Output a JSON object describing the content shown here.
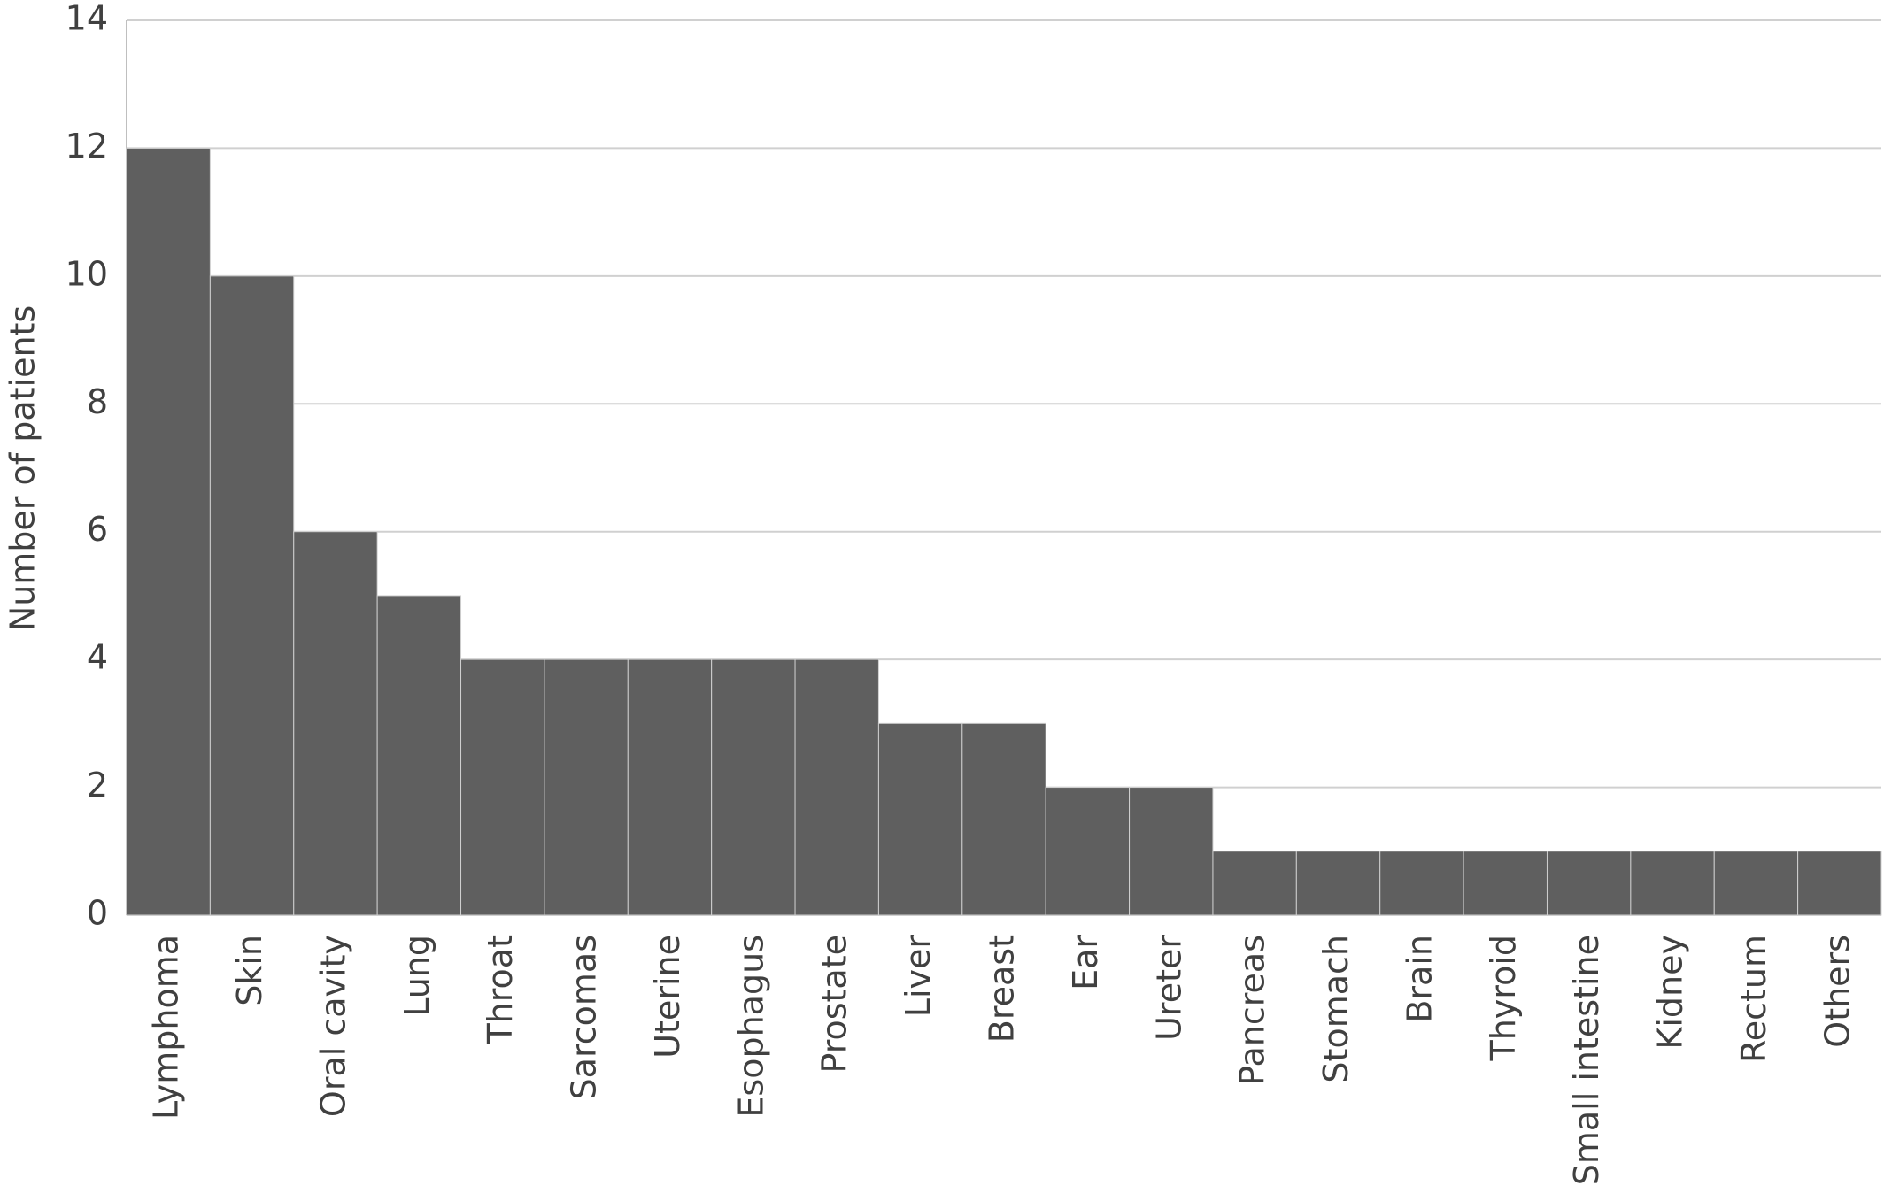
{
  "chart_data": {
    "type": "bar",
    "y_label": "Number of patients",
    "categories": [
      "Lymphoma",
      "Skin",
      "Oral cavity",
      "Lung",
      "Throat",
      "Sarcomas",
      "Uterine",
      "Esophagus",
      "Prostate",
      "Liver",
      "Breast",
      "Ear",
      "Ureter",
      "Pancreas",
      "Stomach",
      "Brain",
      "Thyroid",
      "Small intestine",
      "Kidney",
      "Rectum",
      "Others"
    ],
    "values": [
      12,
      10,
      6,
      5,
      4,
      4,
      4,
      4,
      4,
      3,
      3,
      2,
      2,
      1,
      1,
      1,
      1,
      1,
      1,
      1,
      1
    ],
    "color": "#5f5f5f",
    "ylim": [
      0,
      14
    ],
    "yticks": [
      0,
      2,
      4,
      6,
      8,
      10,
      12,
      14
    ],
    "grid": true
  }
}
